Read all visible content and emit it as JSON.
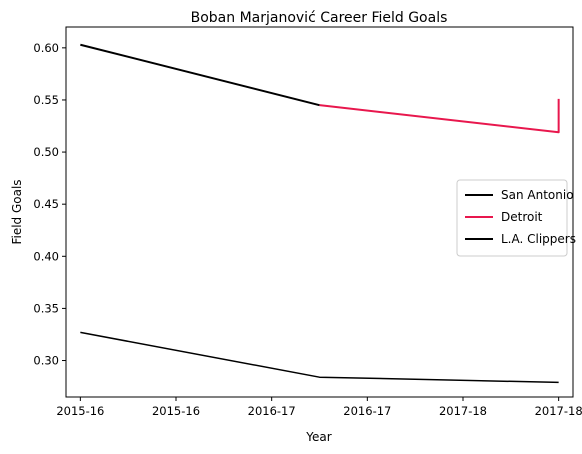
{
  "chart_data": {
    "type": "line",
    "title": "Boban Marjanović Career Field Goals",
    "xlabel": "Year",
    "ylabel": "Field Goals",
    "xlim": [
      -0.06,
      2.06
    ],
    "ylim": [
      0.265,
      0.62
    ],
    "x_ticks": [
      {
        "x": 0.0,
        "label": "2015-16"
      },
      {
        "x": 0.4,
        "label": "2015-16"
      },
      {
        "x": 0.8,
        "label": "2016-17"
      },
      {
        "x": 1.2,
        "label": "2016-17"
      },
      {
        "x": 1.6,
        "label": "2017-18"
      },
      {
        "x": 2.0,
        "label": "2017-18"
      }
    ],
    "y_ticks": [
      0.3,
      0.35,
      0.4,
      0.45,
      0.5,
      0.55,
      0.6
    ],
    "y_tick_labels": [
      "0.30",
      "0.35",
      "0.40",
      "0.45",
      "0.50",
      "0.55",
      "0.60"
    ],
    "series": [
      {
        "name": "San Antonio",
        "color": "#000000",
        "width": 2,
        "points": [
          [
            0.0,
            0.603
          ],
          [
            1.0,
            0.545
          ]
        ]
      },
      {
        "name": "Detroit",
        "color": "#e8174d",
        "width": 2,
        "points": [
          [
            1.0,
            0.545
          ],
          [
            2.0,
            0.519
          ],
          [
            2.0,
            0.551
          ]
        ]
      },
      {
        "name": "L.A. Clippers",
        "color": "#000000",
        "width": 2,
        "legend": true,
        "points": []
      },
      {
        "name": "",
        "color": "#000000",
        "width": 1.5,
        "legend": false,
        "points": [
          [
            0.0,
            0.327
          ],
          [
            1.0,
            0.284
          ],
          [
            2.0,
            0.279
          ]
        ]
      }
    ],
    "grid": false,
    "legend_position": "center-right"
  }
}
